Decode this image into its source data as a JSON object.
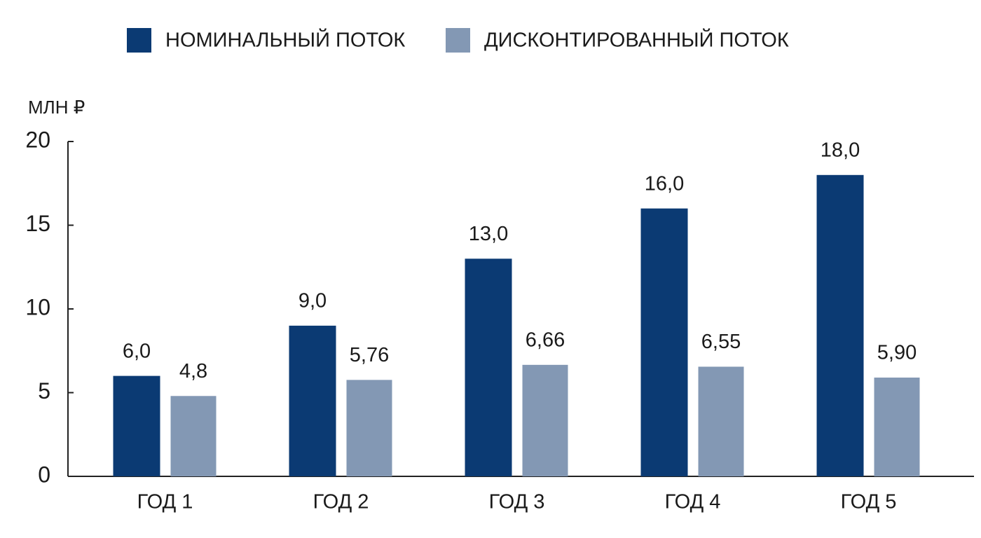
{
  "chart_data": {
    "type": "bar",
    "y_label": "МЛН ₽",
    "categories": [
      "ГОД 1",
      "ГОД 2",
      "ГОД 3",
      "ГОД 4",
      "ГОД 5"
    ],
    "series": [
      {
        "name": "НОМИНАЛЬНЫЙ ПОТОК",
        "color": "#0b3a73",
        "values": [
          6,
          9,
          13,
          16,
          18
        ],
        "value_labels": [
          "6,0",
          "9,0",
          "13,0",
          "16,0",
          "18,0"
        ]
      },
      {
        "name": "ДИСКОНТИРОВАННЫЙ ПОТОК",
        "color": "#8398b4",
        "values": [
          4.8,
          5.76,
          6.66,
          6.55,
          5.9
        ],
        "value_labels": [
          "4,8",
          "5,76",
          "6,66",
          "6,55",
          "5,90"
        ]
      }
    ],
    "ylim": [
      0,
      20
    ],
    "yticks": [
      0,
      5,
      10,
      15,
      20
    ],
    "grid": false,
    "legend": "top"
  }
}
